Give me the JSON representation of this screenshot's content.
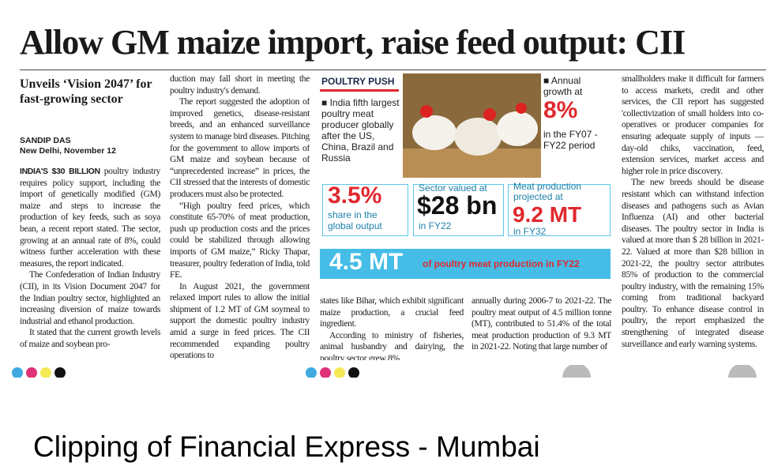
{
  "headline": "Allow GM maize import, raise feed output: CII",
  "subhead": "Unveils ‘Vision 2047’ for fast-growing sector",
  "byline": "SANDIP DAS",
  "dateline": "New Delhi, November 12",
  "columns": [
    {
      "paragraphs": [
        {
          "lead": "INDIA'S $30 BILLION",
          "text": "poultry industry requires policy support, including the import of genetically modified (GM) maize and steps to increase the production of key feeds, such as soya bean, a recent report stated. The sector, growing at an annual rate of 8%, could witness further acceleration with these measures, the report indicated."
        },
        {
          "text": "The Confederation of Indian Industry (CII), in its Vision Document 2047 for the Indian poultry sector, highlighted an increasing diversion of maize towards industrial and ethanol production."
        },
        {
          "text": "It stated that the current growth levels of maize and soybean pro-"
        }
      ]
    },
    {
      "paragraphs": [
        {
          "text": "duction may fall short in meeting the poultry industry's demand."
        },
        {
          "text": "The report suggested the adoption of improved genetics, disease-resistant breeds, and an enhanced surveillance system to manage bird diseases. Pitching for the government to allow imports of GM maize and soybean because of “unprecedented increase” in prices, the CII stressed that the interests of domestic producers must also be protected."
        },
        {
          "text": "“High poultry feed prices, which constitute 65-70% of meat production, push up production costs and the prices could be stabilized through allowing imports of GM maize,” Ricky Thapar, treasurer, poultry federation of India, told FE."
        },
        {
          "text": "In August 2021, the government relaxed import rules to allow the initial shipment of 1.2 MT of GM soymeal to support the domestic poultry industry amid a surge in feed prices. The CII recommended expanding poultry operations to"
        }
      ]
    },
    {
      "paragraphs": [
        {
          "text": "states like Bihar, which exhibit significant maize production, a crucial feed ingredient."
        },
        {
          "text": "According to ministry of fisheries, animal husbandry and dairying, the poultry sector grew 8%"
        }
      ]
    },
    {
      "paragraphs": [
        {
          "text": "annually during 2006-7 to 2021-22. The poultry meat output of 4.5 million tonne (MT), contributed to 51.4% of the total meat production production of 9.3 MT in 2021-22. Noting that large number of"
        }
      ]
    },
    {
      "paragraphs": [
        {
          "text": "smallholders make it difficult for farmers to access markets, credit and other services, the CII report has suggested 'collectivization of small holders into co-operatives or producer companies for ensuring adequate supply of inputs — day-old chiks, vaccination, feed, extension services, market access and higher role in price discovery."
        },
        {
          "text": "The new breeds should be disease resistant which can withstand infection diseases and pathogens such as Avian Influenza (AI) and other bacterial diseases. The poultry sector in India is valued at more than $ 28 billion in 2021-22. Valued at more than $28 billion in 2021-22, the poultry sector attributes 85% of production to the commercial poultry industry, with the remaining 15% coming from traditional backyard poultry. To enhance disease control in poultry, the report emphasized the strengthening of integrated disease surveillance and early warning systems."
        }
      ]
    }
  ],
  "infographic": {
    "title": "POULTRY PUSH",
    "fact": "India fifth largest poultry meat producer globally after the US, China, Brazil and Russia",
    "growth": {
      "label": "Annual growth at",
      "value": "8%",
      "note": "in the FY07 - FY22 period"
    },
    "share": {
      "value": "3.5%",
      "note": "share in the global output"
    },
    "sector": {
      "label": "Sector valued at",
      "value": "$28 bn",
      "note": "in FY22"
    },
    "projection": {
      "label": "Meat production projected at",
      "value": "9.2 MT",
      "note": "in FY32"
    },
    "output": {
      "value": "4.5 MT",
      "note": "of poultry meat production in FY22"
    }
  },
  "caption": "Clipping of Financial Express - Mumbai"
}
